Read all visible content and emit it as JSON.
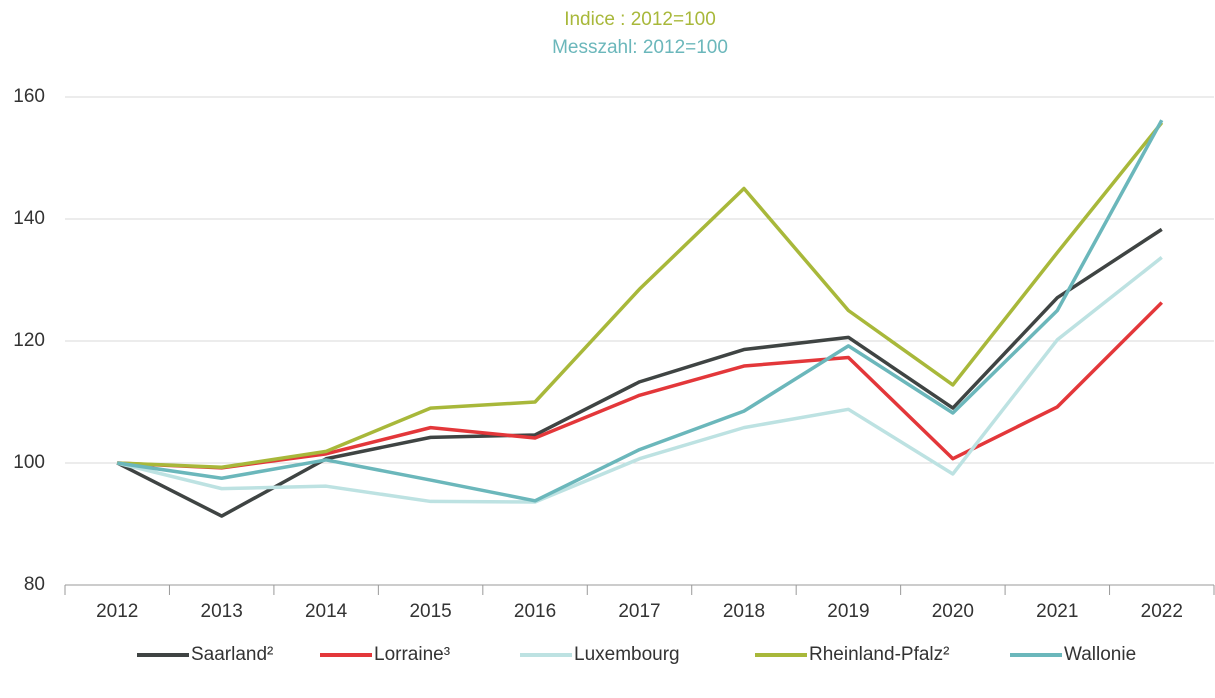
{
  "chart_data": {
    "type": "line",
    "title": "Indice : 2012=100",
    "title_color": "#a8b83a",
    "subtitle": "Messzahl: 2012=100",
    "subtitle_color": "#6bb7bb",
    "categories": [
      "2012",
      "2013",
      "2014",
      "2015",
      "2016",
      "2017",
      "2018",
      "2019",
      "2020",
      "2021",
      "2022"
    ],
    "series": [
      {
        "name": "Saarland²",
        "color": "#3f4443",
        "values": [
          100,
          91.3,
          100.7,
          104.2,
          104.6,
          113.3,
          118.6,
          120.6,
          109,
          127.1,
          138.3
        ]
      },
      {
        "name": "Lorraine³",
        "color": "#e3373a",
        "values": [
          100,
          99.2,
          101.5,
          105.8,
          104.1,
          111.1,
          115.9,
          117.3,
          100.7,
          109.2,
          126.3
        ]
      },
      {
        "name": "Luxembourg",
        "color": "#bde2e2",
        "values": [
          100,
          95.8,
          96.2,
          93.7,
          93.6,
          100.7,
          105.8,
          108.8,
          98.2,
          120.2,
          133.7
        ]
      },
      {
        "name": "Rheinland-Pfalz²",
        "color": "#a8b83a",
        "values": [
          100,
          99.3,
          101.9,
          109,
          110,
          128.5,
          145,
          125,
          112.8,
          134.5,
          155.8
        ]
      },
      {
        "name": "Wallonie",
        "color": "#6bb7bb",
        "values": [
          100,
          97.5,
          100.5,
          97.2,
          93.8,
          102.2,
          108.5,
          119.2,
          108.2,
          125,
          156.2
        ]
      }
    ],
    "ylim": [
      80,
      160
    ],
    "yticks": [
      80,
      100,
      120,
      140,
      160
    ],
    "grid": true,
    "legend": "bottom"
  }
}
